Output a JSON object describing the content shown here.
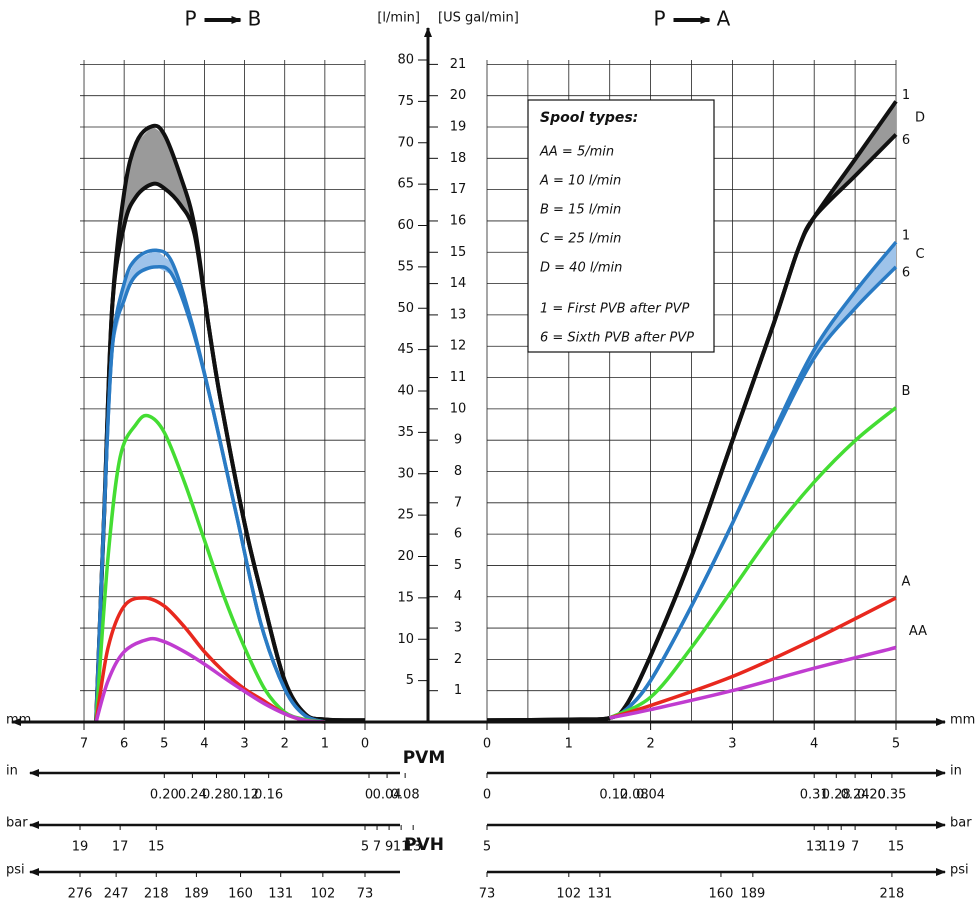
{
  "chart_data": {
    "type": "line",
    "ylabel": "[l/min]",
    "y2label": "[US gal/min]",
    "ylim": [
      0,
      80
    ],
    "yticks": [
      5,
      10,
      15,
      20,
      25,
      30,
      35,
      40,
      45,
      50,
      55,
      60,
      65,
      70,
      75,
      80
    ],
    "y2lim": [
      0,
      21.14
    ],
    "y2ticks": [
      1,
      2,
      3,
      4,
      5,
      6,
      7,
      8,
      9,
      10,
      11,
      12,
      13,
      14,
      15,
      16,
      17,
      18,
      19,
      20,
      21
    ],
    "grid": true,
    "annotations": [
      "PVM",
      "PVH"
    ],
    "legend": {
      "title": "Spool types:",
      "entries": [
        "AA = 5/min",
        "A = 10 l/min",
        "B = 15 l/min",
        "C = 25 l/min",
        "D = 40 l/min",
        "1 = First PVB after PVP",
        "6 = Sixth PVB after PVP"
      ]
    },
    "panels": [
      {
        "title": "P",
        "title2": "B",
        "xlabel": "mm",
        "xlim": [
          7.1,
          0
        ],
        "xticks": [
          0,
          1,
          2,
          3,
          4,
          5,
          6,
          7
        ],
        "xgrid": [
          0,
          1,
          2,
          3,
          4,
          5,
          6,
          7
        ],
        "series": [
          {
            "color": "#111111",
            "fill": "#9a9a9a",
            "x": [
              6.7,
              6.5,
              6.3,
              6.0,
              5.7,
              5.3,
              5.0,
              4.6,
              4.25,
              3.9,
              3.6,
              3.0,
              2.5,
              2.0,
              1.5,
              1.0,
              0
            ],
            "values": [
              0,
              25,
              50,
              64,
              70,
              72,
              71,
              66,
              60,
              48,
              39,
              24,
              14,
              5,
              1,
              0.3,
              0.2
            ]
          },
          {
            "color": "#111111",
            "x": [
              6.7,
              6.5,
              6.3,
              6.0,
              5.7,
              5.3,
              5.0,
              4.6,
              4.25,
              3.9,
              3.6,
              3.0,
              2.5,
              2.0,
              1.5,
              1.0,
              0
            ],
            "values": [
              0,
              25,
              50,
              60,
              63.5,
              65,
              64.5,
              62.5,
              59,
              48,
              39,
              24,
              14,
              5,
              1,
              0.3,
              0.2
            ]
          },
          {
            "color": "#2a7bc4",
            "fill": "#9ec3ea",
            "x": [
              6.7,
              6.5,
              6.3,
              6.0,
              5.7,
              5.2,
              4.8,
              4.3,
              3.8,
              3.2,
              2.6,
              2.0,
              1.5,
              1.0
            ],
            "values": [
              0,
              25,
              45,
              53,
              56,
              57,
              55.5,
              48,
              38,
              25,
              12,
              4,
              0.8,
              0
            ]
          },
          {
            "color": "#2a7bc4",
            "x": [
              6.7,
              6.5,
              6.3,
              6.0,
              5.7,
              5.2,
              4.8,
              4.3,
              3.8,
              3.2,
              2.6,
              2.0,
              1.5,
              1.0
            ],
            "values": [
              0,
              25,
              45,
              51,
              54,
              55,
              54,
              47.5,
              38,
              25,
              12,
              4,
              0.8,
              0
            ]
          },
          {
            "color": "#44dd33",
            "x": [
              6.7,
              6.4,
              6.1,
              5.7,
              5.4,
              5.0,
              4.5,
              4.0,
              3.5,
              3.0,
              2.5,
              2.0,
              1.5,
              1.0
            ],
            "values": [
              0,
              20,
              32,
              36,
              37,
              35,
              29,
              22,
              15,
              9,
              4,
              1.2,
              0.3,
              0
            ]
          },
          {
            "color": "#e8281e",
            "x": [
              6.7,
              6.4,
              6.0,
              5.5,
              5.0,
              4.5,
              4.0,
              3.5,
              3.0,
              2.5,
              2.0,
              1.5,
              1.0
            ],
            "values": [
              0,
              9,
              14,
              15,
              14,
              11.5,
              8.5,
              6,
              4,
              2.5,
              1,
              0.2,
              0
            ]
          },
          {
            "color": "#c03cd0",
            "x": [
              6.7,
              6.4,
              6.0,
              5.4,
              5.0,
              4.5,
              4.0,
              3.5,
              3.0,
              2.5,
              2.0,
              1.5,
              1.0
            ],
            "values": [
              0,
              5,
              8.5,
              10,
              9.7,
              8.5,
              7,
              5.3,
              3.7,
              2.2,
              1,
              0.2,
              0
            ]
          }
        ],
        "scales": [
          {
            "label": "in",
            "ticks": [
              {
                "value": 5.0,
                "label": "0.20"
              },
              {
                "value": 4.3,
                "label": "0.24"
              },
              {
                "value": 3.7,
                "label": "0.28"
              },
              {
                "value": 3.0,
                "label": "0.12"
              },
              {
                "value": 2.4,
                "label": "0.16"
              },
              {
                "value": -0.1,
                "label": "0"
              },
              {
                "value": -0.55,
                "label": "0.04"
              },
              {
                "value": -1.0,
                "label": "0.08"
              }
            ]
          },
          {
            "label": "bar",
            "ticks": [
              {
                "value": 7.1,
                "label": "19"
              },
              {
                "value": 6.1,
                "label": "17"
              },
              {
                "value": 5.2,
                "label": "15"
              },
              {
                "value": 0,
                "label": "5"
              },
              {
                "value": -0.3,
                "label": "7"
              },
              {
                "value": -0.6,
                "label": "9"
              },
              {
                "value": -0.9,
                "label": "11"
              },
              {
                "value": -1.2,
                "label": "13"
              }
            ]
          },
          {
            "label": "psi",
            "ticks": [
              {
                "value": 7.1,
                "label": "276"
              },
              {
                "value": 6.2,
                "label": "247"
              },
              {
                "value": 5.2,
                "label": "218"
              },
              {
                "value": 4.2,
                "label": "189"
              },
              {
                "value": 3.1,
                "label": "160"
              },
              {
                "value": 2.1,
                "label": "131"
              },
              {
                "value": 1.05,
                "label": "102"
              },
              {
                "value": 0,
                "label": "73"
              }
            ]
          }
        ]
      },
      {
        "title": "P",
        "title2": "A",
        "xlabel": "mm",
        "xlim": [
          0,
          5
        ],
        "xticks": [
          0,
          1,
          2,
          3,
          4,
          5
        ],
        "xgrid": [
          0,
          0.5,
          1,
          1.5,
          2,
          2.5,
          3,
          3.5,
          4,
          4.5,
          5
        ],
        "series": [
          {
            "label": "1",
            "group": "D",
            "color": "#111111",
            "fill": "#9a9a9a",
            "x": [
              0,
              1.0,
              1.5,
              1.7,
              2.0,
              2.5,
              3.0,
              3.5,
              3.8,
              4.0,
              4.5,
              5.0
            ],
            "values": [
              0.2,
              0.3,
              0.5,
              2,
              8,
              20,
              34,
              48,
              57,
              61,
              68,
              75
            ]
          },
          {
            "label": "6",
            "color": "#111111",
            "x": [
              0,
              1.0,
              1.5,
              1.7,
              2.0,
              2.5,
              3.0,
              3.5,
              3.8,
              4.0,
              4.5,
              5.0
            ],
            "values": [
              0.2,
              0.3,
              0.5,
              2,
              8,
              20,
              34,
              48,
              57,
              61,
              66,
              71
            ]
          },
          {
            "label": "1",
            "group": "C",
            "color": "#2a7bc4",
            "fill": "#9ec3ea",
            "x": [
              1.5,
              1.7,
              2.0,
              2.5,
              3.0,
              3.5,
              4.0,
              4.5,
              5.0
            ],
            "values": [
              0.5,
              1.5,
              5,
              14,
              24,
              35,
              45,
              52,
              58
            ]
          },
          {
            "label": "6",
            "color": "#2a7bc4",
            "x": [
              1.5,
              1.7,
              2.0,
              2.5,
              3.0,
              3.5,
              4.0,
              4.5,
              5.0
            ],
            "values": [
              0.5,
              1.5,
              5,
              14,
              24,
              34.5,
              44,
              50,
              55
            ]
          },
          {
            "label": "B",
            "color": "#44dd33",
            "x": [
              1.5,
              2,
              2.5,
              3,
              3.5,
              4,
              4.5,
              5
            ],
            "values": [
              0.5,
              3,
              9,
              16,
              23,
              29,
              34,
              38
            ]
          },
          {
            "label": "A",
            "color": "#e8281e",
            "x": [
              1.5,
              2,
              3,
              4,
              5
            ],
            "values": [
              0.5,
              2,
              5.5,
              10,
              15
            ]
          },
          {
            "label": "AA",
            "color": "#c03cd0",
            "x": [
              1.5,
              2,
              3,
              4,
              5
            ],
            "values": [
              0.5,
              1.5,
              3.8,
              6.5,
              9
            ]
          }
        ],
        "scales": [
          {
            "label": "in",
            "ticks": [
              {
                "value": 0,
                "label": "0"
              },
              {
                "value": 1.55,
                "label": "0.12"
              },
              {
                "value": 1.8,
                "label": "0.08"
              },
              {
                "value": 2.0,
                "label": "0.04"
              },
              {
                "value": 4.0,
                "label": "0.31"
              },
              {
                "value": 4.27,
                "label": "0.28"
              },
              {
                "value": 4.5,
                "label": "0.24"
              },
              {
                "value": 4.7,
                "label": "0.20"
              },
              {
                "value": 4.95,
                "label": "0.35"
              }
            ]
          },
          {
            "label": "bar",
            "ticks": [
              {
                "value": 0,
                "label": "5"
              },
              {
                "value": 4.0,
                "label": "13"
              },
              {
                "value": 4.17,
                "label": "11"
              },
              {
                "value": 4.33,
                "label": "9"
              },
              {
                "value": 4.5,
                "label": "7"
              },
              {
                "value": 5.0,
                "label": "15"
              }
            ]
          },
          {
            "label": "psi",
            "ticks": [
              {
                "value": 0,
                "label": "73"
              },
              {
                "value": 1.0,
                "label": "102"
              },
              {
                "value": 1.38,
                "label": "131"
              },
              {
                "value": 2.86,
                "label": "160"
              },
              {
                "value": 3.25,
                "label": "189"
              },
              {
                "value": 4.95,
                "label": "218"
              }
            ]
          }
        ]
      }
    ]
  }
}
